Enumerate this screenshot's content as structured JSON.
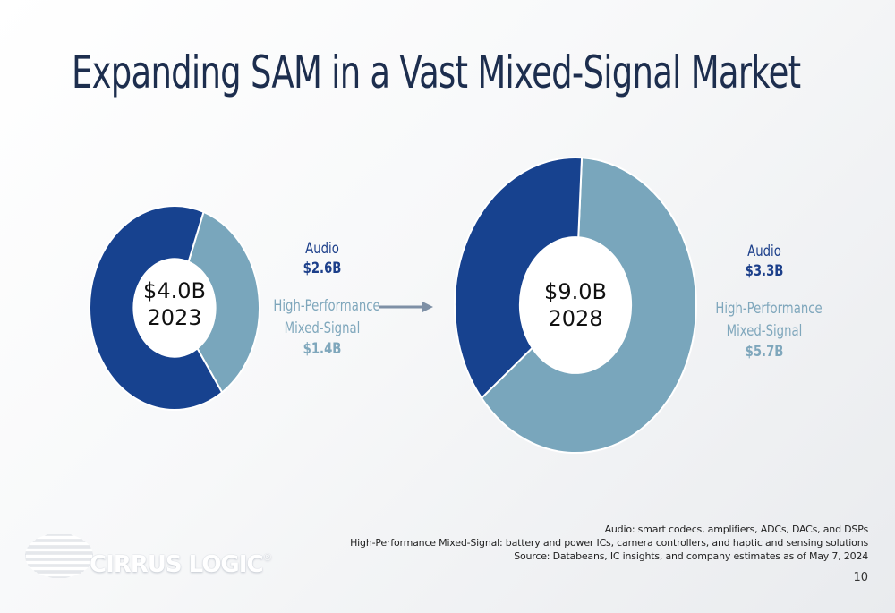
{
  "title": "Expanding SAM in a Vast Mixed-Signal Market",
  "colors": {
    "audio": "#17428f",
    "hpms": "#79a6bc",
    "title": "#1d2e4e",
    "arrow": "#7e90a6"
  },
  "chart_data": [
    {
      "type": "pie",
      "center_value": "$4.0B",
      "center_year": "2023",
      "slices": [
        {
          "name": "Audio",
          "value": 2.6,
          "value_label": "$2.6B",
          "color": "#17428f"
        },
        {
          "name": "High-Performance Mixed-Signal",
          "name_line1": "High-Performance",
          "name_line2": "Mixed-Signal",
          "value": 1.4,
          "value_label": "$1.4B",
          "color": "#79a6bc"
        }
      ]
    },
    {
      "type": "pie",
      "center_value": "$9.0B",
      "center_year": "2028",
      "slices": [
        {
          "name": "Audio",
          "value": 3.3,
          "value_label": "$3.3B",
          "color": "#17428f"
        },
        {
          "name": "High-Performance Mixed-Signal",
          "name_line1": "High-Performance",
          "name_line2": "Mixed-Signal",
          "value": 5.7,
          "value_label": "$5.7B",
          "color": "#79a6bc"
        }
      ]
    }
  ],
  "footnotes": [
    "Audio: smart codecs, amplifiers, ADCs, DACs, and DSPs",
    "High-Performance Mixed-Signal: battery and power ICs, camera controllers, and haptic and sensing solutions",
    "Source: Databeans, IC insights, and company estimates as of May 7, 2024"
  ],
  "page_number": "10",
  "logo": {
    "text": "CIRRUS LOGIC",
    "mark": "®"
  }
}
